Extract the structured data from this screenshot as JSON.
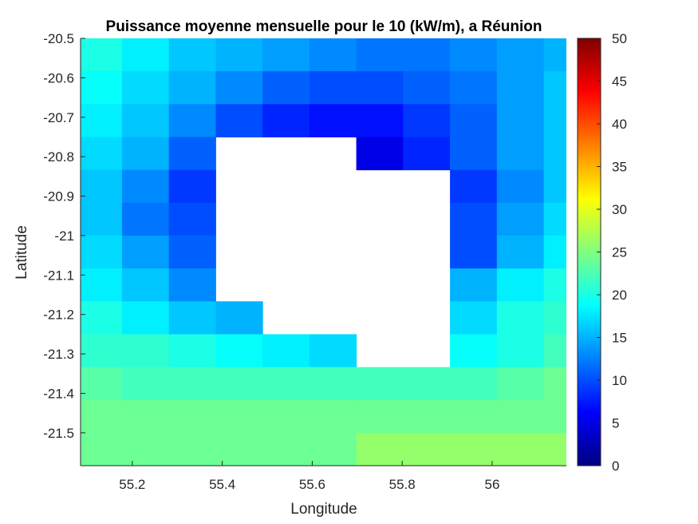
{
  "chart_data": {
    "type": "heatmap",
    "title": "Puissance moyenne mensuelle pour le 10 (kW/m), a Réunion",
    "xlabel": "Longitude",
    "ylabel": "Latitude",
    "x_ticks": [
      "55.2",
      "55.4",
      "55.6",
      "55.8",
      "56"
    ],
    "x_tick_values": [
      55.2,
      55.4,
      55.6,
      55.8,
      56.0
    ],
    "y_ticks": [
      "-20.5",
      "-20.6",
      "-20.7",
      "-20.8",
      "-20.9",
      "-21",
      "-21.1",
      "-21.2",
      "-21.3",
      "-21.4",
      "-21.5"
    ],
    "y_tick_values": [
      -20.5,
      -20.6,
      -20.7,
      -20.8,
      -20.9,
      -21.0,
      -21.1,
      -21.2,
      -21.3,
      -21.4,
      -21.5
    ],
    "xlim": [
      55.085,
      56.165
    ],
    "ylim": [
      -21.5833,
      -20.5
    ],
    "x_centers": [
      55.125,
      55.2292,
      55.3333,
      55.4375,
      55.5417,
      55.6458,
      55.75,
      55.8542,
      55.9583,
      56.0625,
      56.1667
    ],
    "y_centers": [
      -20.5417,
      -20.625,
      -20.7083,
      -20.7917,
      -20.875,
      -20.9583,
      -21.0417,
      -21.125,
      -21.2083,
      -21.2917,
      -21.375,
      -21.4583,
      -21.5417
    ],
    "values": [
      [
        20,
        18,
        16,
        15,
        14,
        13,
        12,
        12,
        13,
        14,
        15
      ],
      [
        19,
        17,
        15,
        13,
        11,
        10,
        10,
        11,
        12,
        14,
        16
      ],
      [
        18,
        16,
        13,
        10,
        8,
        7,
        7,
        9,
        11,
        14,
        16
      ],
      [
        17,
        15,
        11,
        null,
        null,
        null,
        5,
        8,
        11,
        14,
        16
      ],
      [
        16,
        13,
        9,
        null,
        null,
        null,
        null,
        null,
        9,
        13,
        16
      ],
      [
        16,
        12,
        10,
        null,
        null,
        null,
        null,
        null,
        10,
        14,
        17
      ],
      [
        17,
        14,
        11,
        null,
        null,
        null,
        null,
        null,
        10,
        15,
        18
      ],
      [
        18,
        16,
        13,
        null,
        null,
        null,
        null,
        null,
        15,
        18,
        20
      ],
      [
        20,
        18,
        16,
        15,
        null,
        null,
        null,
        null,
        17,
        20,
        21
      ],
      [
        21,
        21,
        20,
        19,
        18,
        17,
        null,
        null,
        19,
        20,
        22
      ],
      [
        23,
        22,
        22,
        22,
        22,
        22,
        22,
        22,
        22,
        23,
        24
      ],
      [
        24,
        24,
        24,
        24,
        24,
        24,
        24,
        24,
        24,
        24,
        24
      ],
      [
        24,
        24,
        24,
        24,
        24,
        24,
        26,
        26,
        26,
        26,
        26
      ]
    ],
    "colorbar": {
      "colormap": "jet",
      "range": [
        0,
        50
      ],
      "tick_values": [
        0,
        5,
        10,
        15,
        20,
        25,
        30,
        35,
        40,
        45,
        50
      ],
      "tick_labels": [
        "0",
        "5",
        "10",
        "15",
        "20",
        "25",
        "30",
        "35",
        "40",
        "45",
        "50"
      ]
    },
    "grid": false
  }
}
